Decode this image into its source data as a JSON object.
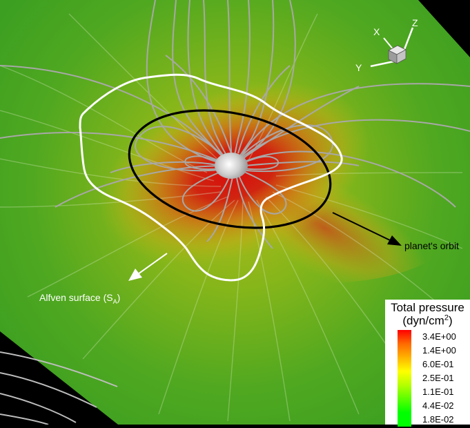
{
  "labels": {
    "planet_orbit": "planet's orbit",
    "alfven_main": "Alfven surface (S",
    "alfven_sub": "A",
    "alfven_end": ")"
  },
  "axes_triad": {
    "x": "X",
    "y": "Y",
    "z": "Z"
  },
  "legend": {
    "title_line1": "Total pressure",
    "title_line2_main": "(dyn/cm",
    "title_line2_sup": "2",
    "title_line2_end": ")",
    "entries": [
      {
        "value": "3.4E+00",
        "color": "#ff0000"
      },
      {
        "value": "1.4E+00",
        "color": "#ff6a00"
      },
      {
        "value": "6.0E-01",
        "color": "#ffb400"
      },
      {
        "value": "2.5E-01",
        "color": "#ffff00"
      },
      {
        "value": "1.1E-01",
        "color": "#b4ff00"
      },
      {
        "value": "4.4E-02",
        "color": "#5aff00"
      },
      {
        "value": "1.8E-02",
        "color": "#00ff00"
      }
    ]
  },
  "colors": {
    "background": "#000000",
    "plane_low": "#3fa51f",
    "plane_mid": "#c9c21a",
    "plane_high": "#d80e0e",
    "field_lines": "#a8a8a8",
    "orbit": "#000000",
    "alfven_surface": "#ffffff"
  }
}
